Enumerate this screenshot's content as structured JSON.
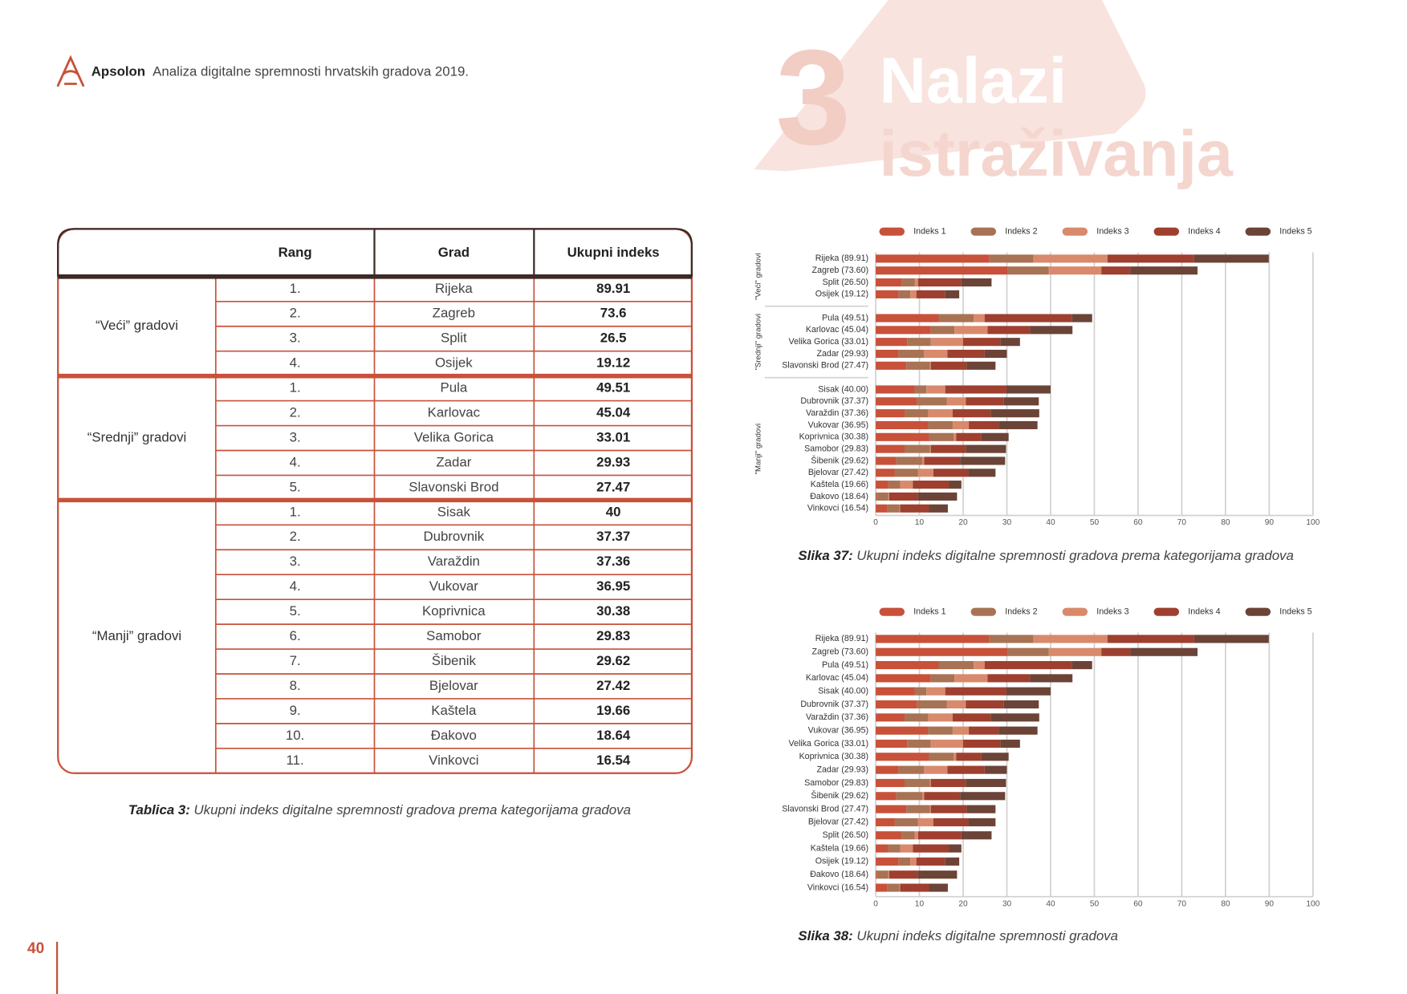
{
  "header": {
    "brand": "Apsolon",
    "title": "Analiza digitalne spremnosti hrvatskih gradova 2019.",
    "section_number": "3",
    "section_title": [
      "Nalazi",
      "istraživanja"
    ]
  },
  "table": {
    "columns": [
      "Rang",
      "Grad",
      "Ukupni indeks"
    ],
    "groups": [
      {
        "label": "“Veći” gradovi",
        "rows": [
          [
            "1.",
            "Rijeka",
            89.91
          ],
          [
            "2.",
            "Zagreb",
            73.6
          ],
          [
            "3.",
            "Split",
            26.5
          ],
          [
            "4.",
            "Osijek",
            19.12
          ]
        ]
      },
      {
        "label": "“Srednji” gradovi",
        "rows": [
          [
            "1.",
            "Pula",
            49.51
          ],
          [
            "2.",
            "Karlovac",
            45.04
          ],
          [
            "3.",
            "Velika Gorica",
            33.01
          ],
          [
            "4.",
            "Zadar",
            29.93
          ],
          [
            "5.",
            "Slavonski Brod",
            27.47
          ]
        ]
      },
      {
        "label": "“Manji” gradovi",
        "rows": [
          [
            "1.",
            "Sisak",
            40
          ],
          [
            "2.",
            "Dubrovnik",
            37.37
          ],
          [
            "3.",
            "Varaždin",
            37.36
          ],
          [
            "4.",
            "Vukovar",
            36.95
          ],
          [
            "5.",
            "Koprivnica",
            30.38
          ],
          [
            "6.",
            "Samobor",
            29.83
          ],
          [
            "7.",
            "Šibenik",
            29.62
          ],
          [
            "8.",
            "Bjelovar",
            27.42
          ],
          [
            "9.",
            "Kaštela",
            19.66
          ],
          [
            "10.",
            "Đakovo",
            18.64
          ],
          [
            "11.",
            "Vinkovci",
            16.54
          ]
        ]
      }
    ],
    "caption_label": "Tablica 3:",
    "caption": "Ukupni indeks digitalne spremnosti gradova prema kategorijama gradova"
  },
  "chart_data": [
    {
      "type": "bar",
      "orientation": "horizontal",
      "stacked": true,
      "legend": "top",
      "grid": true,
      "group_labels": [
        "\"Veći\" gradovi",
        "\"Srednji\" gradovi",
        "\"Manji\" gradovi"
      ],
      "categories": [
        [
          "Rijeka (89.91)",
          "Zagreb (73.60)",
          "Split (26.50)",
          "Osijek (19.12)"
        ],
        [
          "Pula (49.51)",
          "Karlovac (45.04)",
          "Velika Gorica (33.01)",
          "Zadar (29.93)",
          "Slavonski Brod (27.47)"
        ],
        [
          "Sisak (40.00)",
          "Dubrovnik (37.37)",
          "Varaždin (37.36)",
          "Vukovar (36.95)",
          "Koprivnica (30.38)",
          "Samobor (29.83)",
          "Šibenik (29.62)",
          "Bjelovar (27.42)",
          "Kaštela (19.66)",
          "Đakovo (18.64)",
          "Vinkovci (16.54)"
        ]
      ],
      "series": [
        {
          "name": "Indeks 1",
          "color": "#c8513a",
          "values": [
            [
              26,
              30.1,
              6,
              5.2
            ],
            [
              14.4,
              12.6,
              7.2,
              5.2,
              7
            ],
            [
              8.9,
              9.5,
              6.6,
              12,
              12.2,
              6.6,
              4.7,
              4.3,
              2.9,
              0.2,
              2.7
            ]
          ]
        },
        {
          "name": "Indeks 2",
          "color": "#a87354",
          "values": [
            [
              10.1,
              9.5,
              2.9,
              2.7
            ],
            [
              8,
              5.4,
              5.4,
              5.8,
              5.4
            ],
            [
              2.7,
              6.8,
              5.4,
              5.6,
              5.6,
              5.8,
              6,
              5.4,
              2.7,
              2.7,
              2.7
            ]
          ]
        },
        {
          "name": "Indeks 3",
          "color": "#d98a6c",
          "values": [
            [
              16.9,
              12,
              0.8,
              1.4
            ],
            [
              2.5,
              7.6,
              7.4,
              5.4,
              0.2
            ],
            [
              4.3,
              4.3,
              5.6,
              3.7,
              0.6,
              0.2,
              0.4,
              3.5,
              2.9,
              0.2,
              0.2
            ]
          ]
        },
        {
          "name": "Indeks 4",
          "color": "#9e3f2f",
          "values": [
            [
              19.8,
              6.6,
              9.9,
              6.6
            ],
            [
              20,
              9.7,
              8.5,
              8.5,
              8.2
            ],
            [
              14,
              8.7,
              8.7,
              6.8,
              5.8,
              8,
              8.2,
              8,
              8.2,
              6.6,
              6.6
            ]
          ]
        },
        {
          "name": "Indeks 5",
          "color": "#6b4437",
          "values": [
            [
              17.1,
              15.4,
              6.9,
              3.2
            ],
            [
              4.6,
              9.7,
              4.5,
              5.1,
              6.6
            ],
            [
              10.1,
              8,
              11.1,
              8.9,
              6.2,
              9.2,
              10.3,
              6.2,
              2.9,
              8.9,
              4.3
            ]
          ]
        }
      ],
      "xlim": [
        0,
        100
      ],
      "xticks": [
        0,
        10,
        20,
        30,
        40,
        50,
        60,
        70,
        80,
        90,
        100
      ],
      "caption_label": "Slika 37:",
      "caption": "Ukupni indeks digitalne spremnosti gradova prema kategorijama gradova"
    },
    {
      "type": "bar",
      "orientation": "horizontal",
      "stacked": true,
      "legend": "top",
      "grid": true,
      "categories": [
        "Rijeka (89.91)",
        "Zagreb (73.60)",
        "Pula (49.51)",
        "Karlovac (45.04)",
        "Sisak (40.00)",
        "Dubrovnik (37.37)",
        "Varaždin (37.36)",
        "Vukovar (36.95)",
        "Velika Gorica (33.01)",
        "Koprivnica (30.38)",
        "Zadar (29.93)",
        "Samobor (29.83)",
        "Šibenik (29.62)",
        "Slavonski Brod (27.47)",
        "Bjelovar (27.42)",
        "Split (26.50)",
        "Kaštela (19.66)",
        "Osijek (19.12)",
        "Đakovo (18.64)",
        "Vinkovci (16.54)"
      ],
      "series": [
        {
          "name": "Indeks 1",
          "color": "#c8513a",
          "values": [
            26,
            30.1,
            14.4,
            12.6,
            8.9,
            9.5,
            6.6,
            12,
            7.2,
            12.2,
            5.2,
            6.6,
            4.7,
            7,
            4.3,
            6,
            2.9,
            5.2,
            0.2,
            2.7
          ]
        },
        {
          "name": "Indeks 2",
          "color": "#a87354",
          "values": [
            10.1,
            9.5,
            8,
            5.4,
            2.7,
            6.8,
            5.4,
            5.6,
            5.4,
            5.6,
            5.8,
            5.8,
            6,
            5.4,
            5.4,
            2.9,
            2.7,
            2.7,
            2.7,
            2.7
          ]
        },
        {
          "name": "Indeks 3",
          "color": "#d98a6c",
          "values": [
            16.9,
            12,
            2.5,
            7.6,
            4.3,
            4.3,
            5.6,
            3.7,
            7.4,
            0.6,
            5.4,
            0.2,
            0.4,
            0.2,
            3.5,
            0.8,
            2.9,
            1.4,
            0.2,
            0.2
          ]
        },
        {
          "name": "Indeks 4",
          "color": "#9e3f2f",
          "values": [
            19.8,
            6.6,
            20,
            9.7,
            14,
            8.7,
            8.7,
            6.8,
            8.5,
            5.8,
            8.5,
            8,
            8.2,
            8.2,
            8,
            9.9,
            8.2,
            6.6,
            6.6,
            6.6
          ]
        },
        {
          "name": "Indeks 5",
          "color": "#6b4437",
          "values": [
            17.1,
            15.4,
            4.6,
            9.7,
            10.1,
            8,
            11.1,
            8.9,
            4.5,
            6.2,
            5.1,
            9.2,
            10.3,
            6.6,
            6.2,
            6.9,
            2.9,
            3.2,
            8.9,
            4.3
          ]
        }
      ],
      "xlim": [
        0,
        100
      ],
      "xticks": [
        0,
        10,
        20,
        30,
        40,
        50,
        60,
        70,
        80,
        90,
        100
      ],
      "caption_label": "Slika 38:",
      "caption": "Ukupni indeks digitalne spremnosti gradova"
    }
  ],
  "page_number": "40"
}
